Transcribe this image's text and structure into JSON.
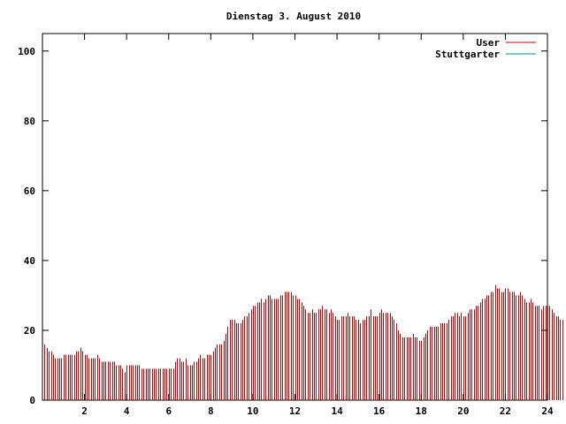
{
  "chart_data": {
    "type": "bar",
    "title": "Dienstag 3. August 2010",
    "xlabel": "",
    "ylabel": "",
    "xlim": [
      0,
      24
    ],
    "ylim": [
      0,
      105
    ],
    "xticks": [
      2,
      4,
      6,
      8,
      10,
      12,
      14,
      16,
      18,
      20,
      22,
      24
    ],
    "yticks": [
      0,
      20,
      40,
      60,
      80,
      100
    ],
    "grid": false,
    "legend_position": "top-right",
    "series": [
      {
        "name": "User",
        "color": "#cc0000",
        "x_start": 0.1,
        "x_step": 0.1,
        "values": [
          16,
          15,
          14,
          14,
          13,
          12,
          12,
          12,
          12,
          13,
          13,
          13,
          13,
          13,
          13,
          14,
          14,
          15,
          14,
          13,
          13,
          12,
          12,
          12,
          12,
          13,
          12,
          11,
          11,
          11,
          11,
          11,
          11,
          11,
          10,
          10,
          10,
          9,
          8,
          10,
          10,
          10,
          10,
          10,
          10,
          10,
          9,
          9,
          9,
          9,
          9,
          9,
          9,
          9,
          9,
          9,
          9,
          9,
          9,
          9,
          9,
          9,
          11,
          12,
          12,
          11,
          11,
          12,
          10,
          10,
          10,
          11,
          11,
          12,
          13,
          12,
          12,
          13,
          13,
          13,
          14,
          15,
          16,
          16,
          16,
          17,
          19,
          21,
          23,
          23,
          23,
          22,
          22,
          22,
          23,
          24,
          24,
          25,
          26,
          27,
          27,
          28,
          28,
          29,
          28,
          29,
          30,
          30,
          29,
          29,
          29,
          29,
          30,
          30,
          31,
          31,
          31,
          31,
          30,
          30,
          29,
          29,
          28,
          27,
          26,
          25,
          25,
          26,
          25,
          25,
          26,
          26,
          27,
          26,
          26,
          25,
          26,
          25,
          24,
          23,
          23,
          24,
          24,
          24,
          25,
          24,
          24,
          24,
          23,
          23,
          22,
          23,
          23,
          24,
          24,
          26,
          24,
          24,
          24,
          25,
          26,
          25,
          25,
          25,
          25,
          24,
          23,
          22,
          20,
          19,
          18,
          18,
          18,
          18,
          18,
          19,
          18,
          18,
          17,
          17,
          18,
          19,
          20,
          21,
          21,
          21,
          21,
          21,
          22,
          22,
          22,
          22,
          23,
          24,
          24,
          25,
          25,
          24,
          25,
          24,
          24,
          25,
          26,
          26,
          26,
          27,
          27,
          28,
          29,
          29,
          30,
          30,
          31,
          31,
          33,
          32,
          32,
          31,
          31,
          32,
          32,
          31,
          31,
          31,
          30,
          30,
          31,
          30,
          29,
          28,
          28,
          29,
          28,
          27,
          27,
          27,
          26,
          27,
          27,
          27,
          27,
          26,
          25,
          24,
          24,
          23,
          23
        ]
      },
      {
        "name": "Stuttgarter",
        "color": "#009090",
        "values": []
      }
    ]
  }
}
